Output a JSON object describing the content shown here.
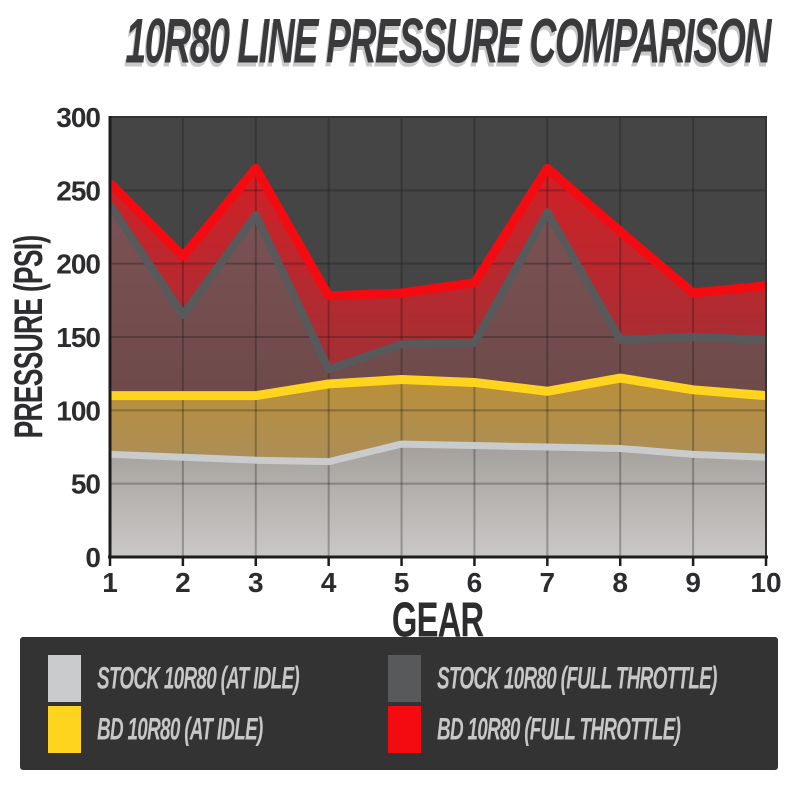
{
  "page_title": "10R80 LINE PRESSURE COMPARISON",
  "chart_data": {
    "type": "area",
    "title": "10R80 LINE PRESSURE COMPARISON",
    "xlabel": "GEAR",
    "ylabel": "PRESSURE (PSI)",
    "categories": [
      1,
      2,
      3,
      4,
      5,
      6,
      7,
      8,
      9,
      10
    ],
    "ylim": [
      0,
      300
    ],
    "yticks": [
      0,
      50,
      100,
      150,
      200,
      250,
      300
    ],
    "grid": true,
    "legend_position": "bottom",
    "plot_background_color": "#454545",
    "series": [
      {
        "name": "STOCK 10R80 (AT IDLE)",
        "color": "#c9cbcd",
        "values": [
          70,
          68,
          66,
          65,
          77,
          76,
          75,
          74,
          70,
          68
        ]
      },
      {
        "name": "BD 10R80 (AT IDLE)",
        "color": "#ffd41e",
        "values": [
          110,
          110,
          110,
          118,
          121,
          119,
          113,
          122,
          114,
          110
        ]
      },
      {
        "name": "STOCK 10R80 (FULL THROTTLE)",
        "color": "#58595b",
        "values": [
          240,
          165,
          233,
          128,
          145,
          146,
          235,
          148,
          150,
          148
        ]
      },
      {
        "name": "BD 10R80 (FULL THROTTLE)",
        "color": "#f40b12",
        "values": [
          255,
          205,
          265,
          178,
          180,
          187,
          265,
          222,
          180,
          185
        ]
      }
    ]
  },
  "legend": {
    "items": [
      {
        "label": "STOCK 10R80 (AT IDLE)",
        "color": "#c9cbcd"
      },
      {
        "label": "STOCK 10R80 (FULL THROTTLE)",
        "color": "#58595b"
      },
      {
        "label": "BD 10R80 (AT IDLE)",
        "color": "#ffd41e"
      },
      {
        "label": "BD 10R80 (FULL THROTTLE)",
        "color": "#f40b12"
      }
    ]
  }
}
